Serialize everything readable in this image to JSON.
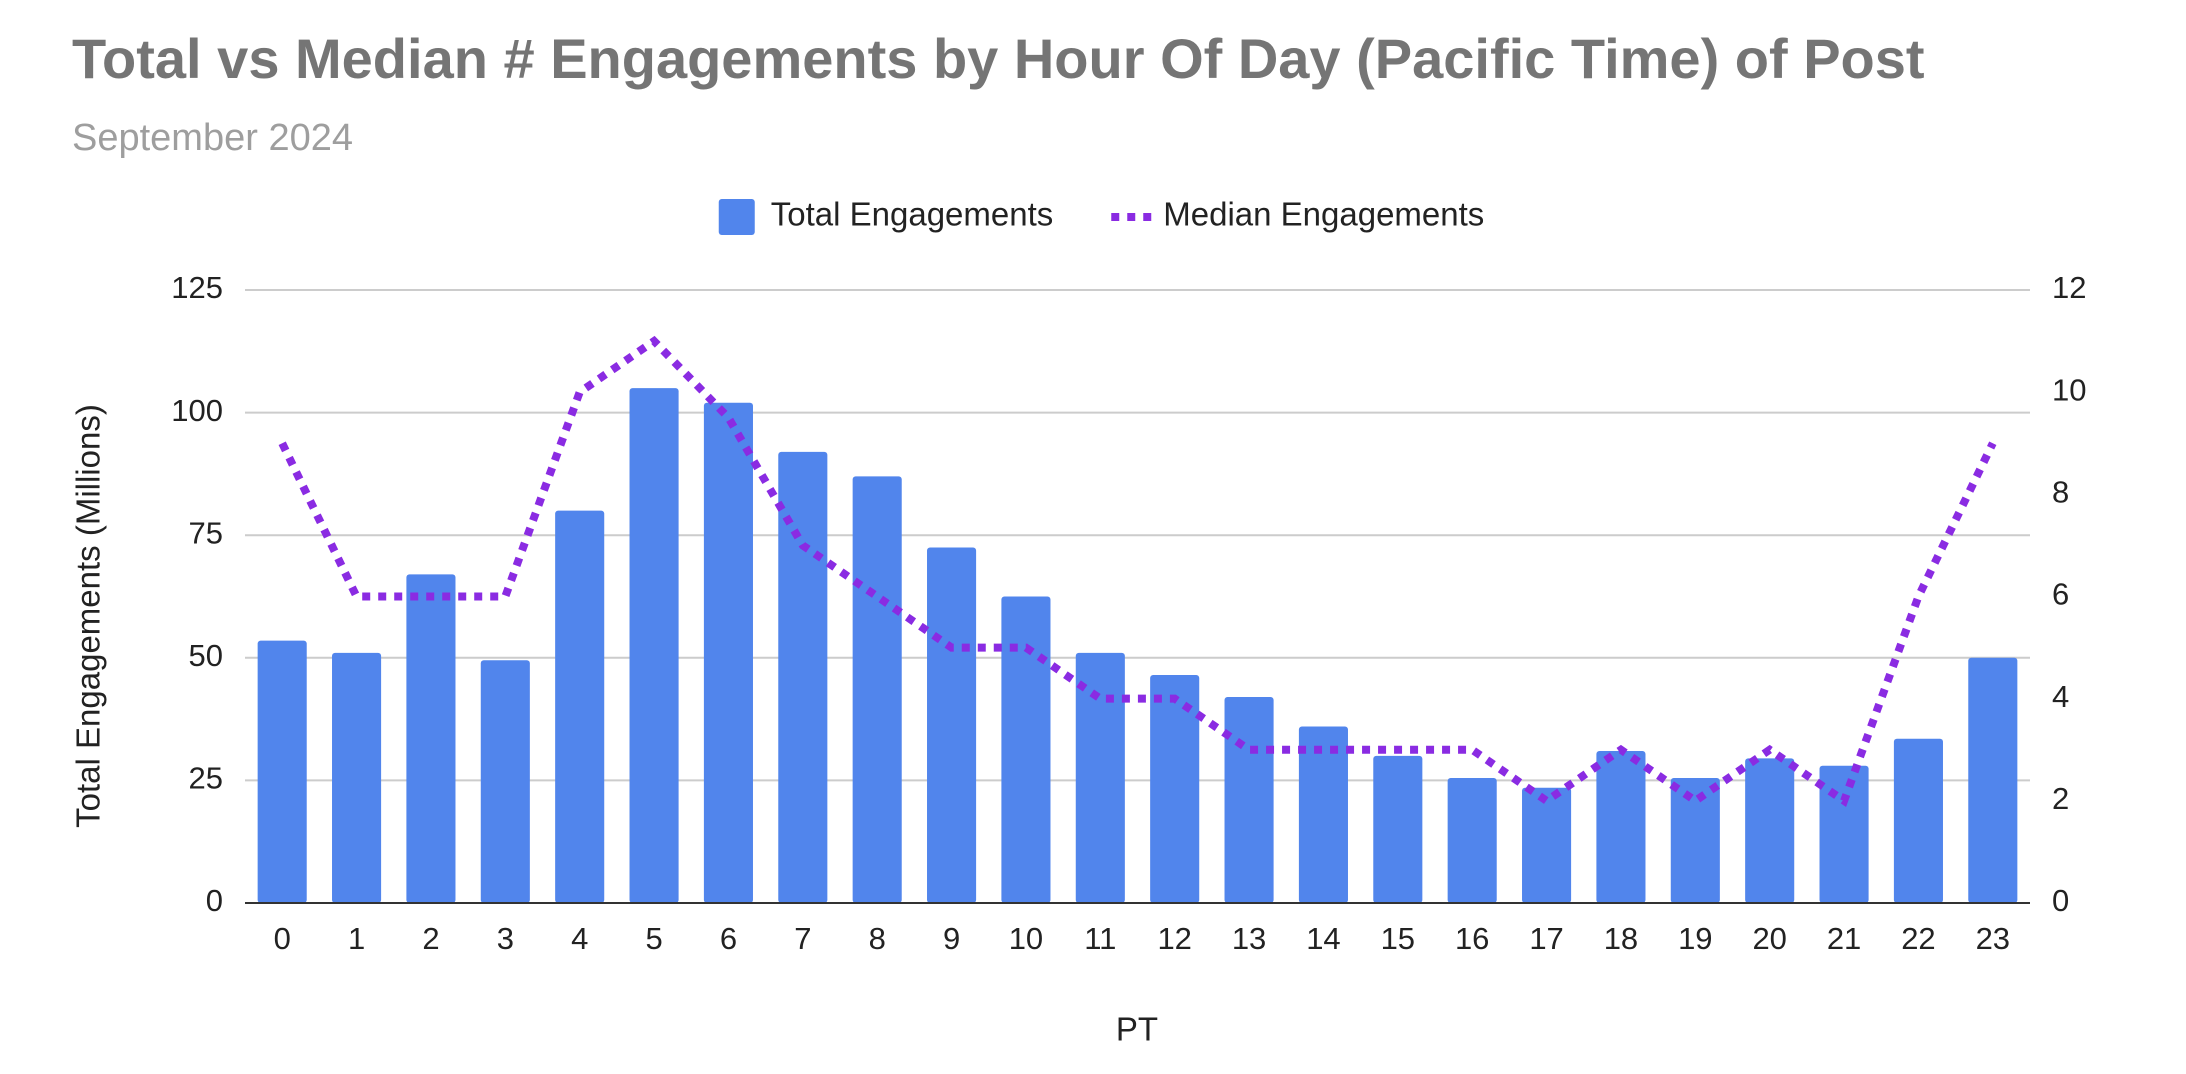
{
  "chart_data": {
    "type": "bar_line",
    "title": "Total vs Median # Engagements by Hour Of Day (Pacific Time) of Post",
    "subtitle": "September 2024",
    "x_label": "PT",
    "y_label": "Total Engagements (Millions)",
    "categories": [
      "0",
      "1",
      "2",
      "3",
      "4",
      "5",
      "6",
      "7",
      "8",
      "9",
      "10",
      "11",
      "12",
      "13",
      "14",
      "15",
      "16",
      "17",
      "18",
      "19",
      "20",
      "21",
      "22",
      "23"
    ],
    "series": [
      {
        "name": "Total Engagements",
        "color": "#5185ec",
        "kind": "bar",
        "values": [
          53.5,
          51,
          67,
          49.5,
          80,
          105,
          102,
          92,
          87,
          72.5,
          62.5,
          51,
          46.5,
          42,
          36,
          30,
          25.5,
          23.5,
          31,
          25.5,
          29.5,
          28,
          33.5,
          50
        ]
      },
      {
        "name": "Median Engagements",
        "color": "#8a2be2",
        "kind": "line",
        "axis": "y2",
        "values": [
          9,
          6,
          6,
          6,
          10,
          11,
          9.5,
          7,
          6,
          5,
          5,
          4,
          4,
          3,
          3,
          3,
          3,
          2,
          3,
          2,
          3,
          2,
          6,
          9
        ]
      }
    ],
    "ylim": [
      0,
      125
    ],
    "yticks": [
      0,
      25,
      50,
      75,
      100,
      125
    ],
    "y2lim": [
      0,
      12
    ],
    "y2ticks": [
      0,
      2,
      4,
      6,
      8,
      10,
      12
    ],
    "grid": true,
    "legend": "top"
  }
}
